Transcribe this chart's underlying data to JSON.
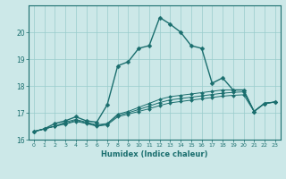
{
  "title": "",
  "xlabel": "Humidex (Indice chaleur)",
  "background_color": "#cce8e8",
  "grid_color": "#99cccc",
  "line_color": "#1a6e6e",
  "xlim": [
    -0.5,
    23.5
  ],
  "ylim": [
    16.0,
    21.0
  ],
  "yticks": [
    16,
    17,
    18,
    19,
    20
  ],
  "xticks": [
    0,
    1,
    2,
    3,
    4,
    5,
    6,
    7,
    8,
    9,
    10,
    11,
    12,
    13,
    14,
    15,
    16,
    17,
    18,
    19,
    20,
    21,
    22,
    23
  ],
  "xtick_labels": [
    "0",
    "1",
    "2",
    "3",
    "4",
    "5",
    "6",
    "7",
    "8",
    "9",
    "10",
    "11",
    "12",
    "13",
    "14",
    "15",
    "16",
    "17",
    "18",
    "19",
    "20",
    "21",
    "22",
    "23"
  ],
  "series": [
    [
      16.3,
      16.4,
      16.6,
      16.7,
      16.85,
      16.7,
      16.65,
      17.3,
      18.75,
      18.9,
      19.4,
      19.5,
      20.55,
      20.3,
      20.0,
      19.5,
      19.4,
      18.1,
      18.3,
      17.85,
      17.85,
      17.05,
      17.35,
      17.4
    ],
    [
      16.3,
      16.4,
      16.5,
      16.65,
      16.75,
      16.65,
      16.55,
      16.6,
      16.95,
      17.05,
      17.2,
      17.35,
      17.5,
      17.6,
      17.65,
      17.7,
      17.75,
      17.8,
      17.85,
      17.85,
      17.85,
      17.05,
      17.35,
      17.4
    ],
    [
      16.3,
      16.4,
      16.5,
      16.6,
      16.72,
      16.62,
      16.52,
      16.58,
      16.9,
      17.0,
      17.12,
      17.25,
      17.38,
      17.48,
      17.53,
      17.58,
      17.63,
      17.68,
      17.73,
      17.76,
      17.78,
      17.05,
      17.35,
      17.4
    ],
    [
      16.3,
      16.4,
      16.5,
      16.58,
      16.68,
      16.6,
      16.5,
      16.55,
      16.85,
      16.95,
      17.05,
      17.15,
      17.27,
      17.37,
      17.42,
      17.47,
      17.52,
      17.57,
      17.62,
      17.65,
      17.67,
      17.05,
      17.35,
      17.4
    ]
  ],
  "linewidths": [
    1.0,
    0.7,
    0.7,
    0.7
  ],
  "markersizes": [
    2.5,
    2.0,
    2.0,
    2.0
  ]
}
